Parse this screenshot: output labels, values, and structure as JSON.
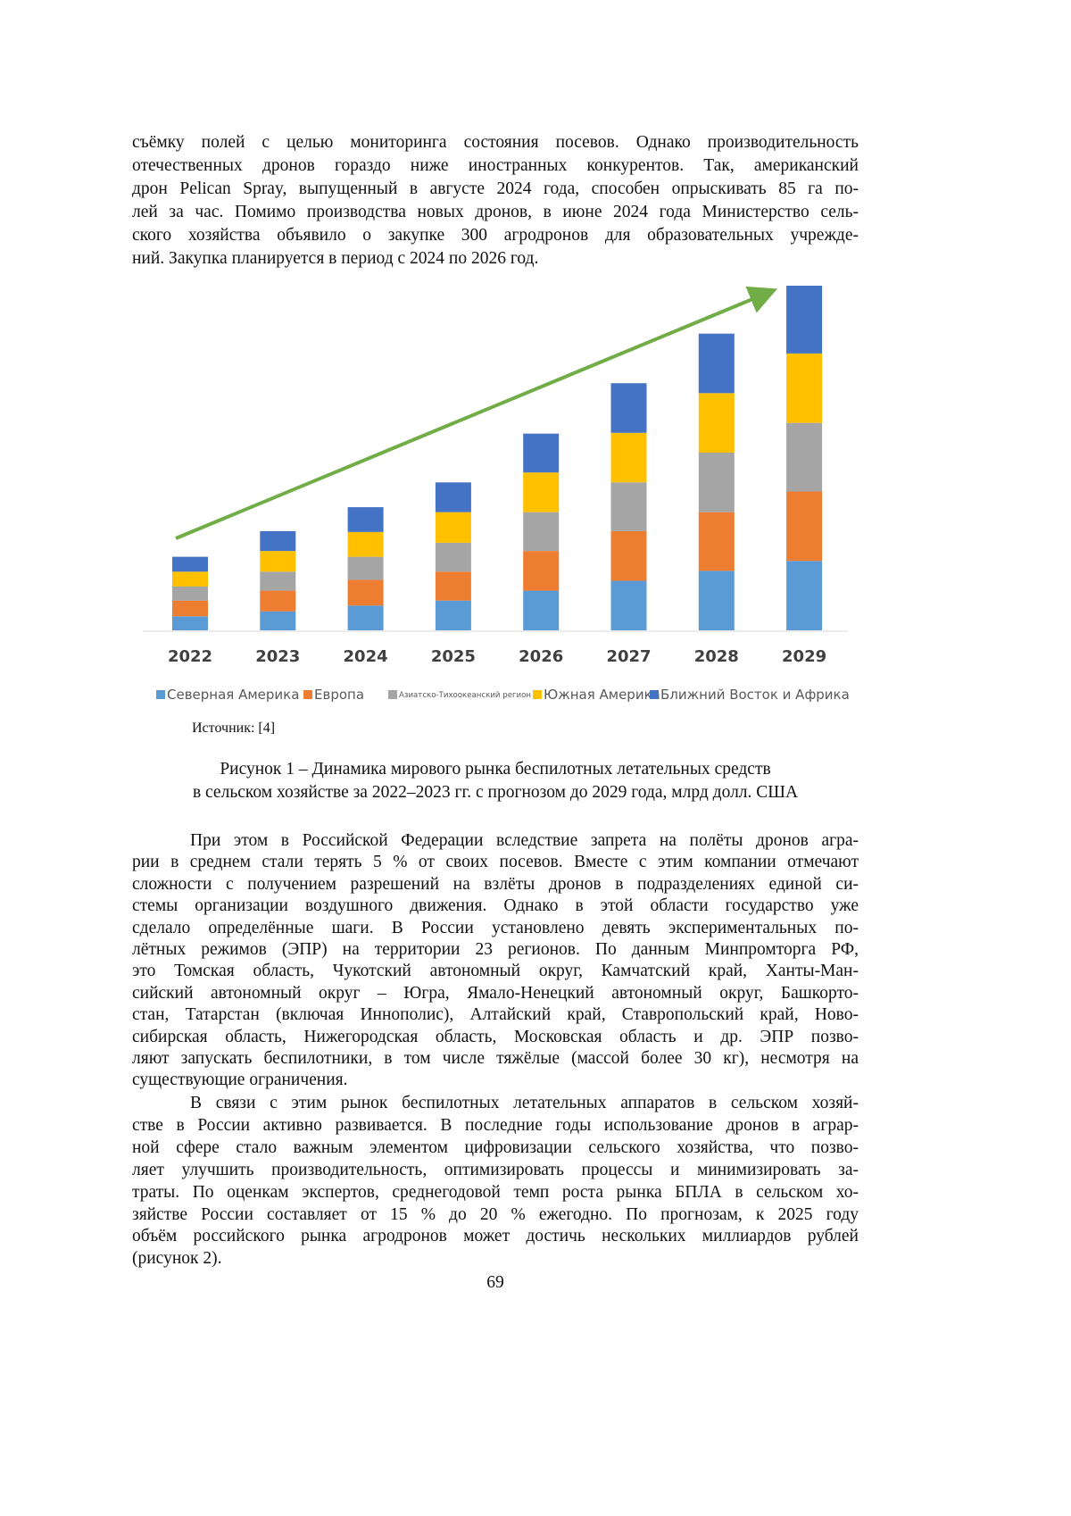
{
  "paragraph_1": {
    "lines": [
      "съёмку полей с целью мониторинга состояния посевов. Однако производительность",
      "отечественных дронов гораздо ниже иностранных конкурентов. Так, американский",
      "дрон Pelican Spray, выпущенный в августе 2024 года, способен опрыскивать 85 га по-",
      "лей за час. Помимо производства новых дронов, в июне 2024 года Министерство сель-",
      "ского хозяйства объявило о закупке 300 агродронов для образовательных учрежде-",
      "ний. Закупка планируется в период с 2024 по 2026 год."
    ]
  },
  "chart_data": {
    "type": "stacked_bar",
    "categories": [
      "2022",
      "2023",
      "2024",
      "2025",
      "2026",
      "2027",
      "2028",
      "2029"
    ],
    "series": [
      {
        "name": "Северная Америка",
        "color": "#5b9bd5",
        "values": [
          17,
          23,
          30,
          36,
          48,
          60,
          72,
          84
        ]
      },
      {
        "name": "Европа",
        "color": "#ed7d31",
        "values": [
          19,
          25,
          31,
          35,
          48,
          60,
          71,
          84
        ]
      },
      {
        "name": "Азиатско-Тихоокеанский регион",
        "color": "#a5a5a5",
        "values": [
          17,
          23,
          28,
          35,
          47,
          59,
          72,
          83
        ]
      },
      {
        "name": "Южная Америка",
        "color": "#ffc000",
        "values": [
          18,
          25,
          30,
          37,
          48,
          60,
          72,
          84
        ]
      },
      {
        "name": "Ближний Восток и Африка",
        "color": "#4472c4",
        "values": [
          18,
          24,
          30,
          36,
          47,
          60,
          72,
          82
        ]
      }
    ],
    "legend": "bottom"
  },
  "source": "Источник: [4]",
  "caption": {
    "lines": [
      "Рисунок 1 – Динамика мирового рынка беспилотных летательных средств",
      "в сельском хозяйстве за 2022–2023 гг. с прогнозом до 2029 года, млрд долл. США"
    ]
  },
  "paragraph_2": {
    "lines": [
      "При этом в Российской Федерации вследствие запрета на полёты дронов агра-",
      "рии в среднем стали терять 5 % от своих посевов. Вместе с этим компании отмечают",
      "сложности с получением разрешений на взлёты дронов в подразделениях единой си-",
      "стемы организации воздушного движения. Однако в этой области государство уже",
      "сделало определённые шаги. В России установлено девять экспериментальных по-",
      "лётных режимов (ЭПР) на территории 23 регионов. По данным Минпромторга РФ,",
      "это Томская область, Чукотский автономный округ, Камчатский край, Ханты-Ман-",
      "сийский автономный округ – Югра, Ямало-Ненецкий автономный округ, Башкорто-",
      "стан, Татарстан (включая Иннополис), Алтайский край, Ставропольский край, Ново-",
      "сибирская область, Нижегородская область, Московская область и др. ЭПР позво-",
      "ляют запускать беспилотники, в том числе тяжёлые (массой более 30 кг), несмотря на",
      "существующие ограничения."
    ]
  },
  "paragraph_3": {
    "lines": [
      "В связи с этим рынок беспилотных летательных аппаратов в сельском хозяй-",
      "стве в России активно развивается. В последние годы использование дронов в аграр-",
      "ной сфере стало важным элементом цифровизации сельского хозяйства, что позво-",
      "ляет улучшить производительность, оптимизировать процессы и минимизировать за-",
      "траты. По оценкам экспертов, среднегодовой темп роста рынка БПЛА в сельском хо-",
      "зяйстве России составляет от 15 % до 20 % ежегодно. По прогнозам, к 2025 году",
      "объём российского рынка агродронов может достичь нескольких миллиардов рублей",
      "(рисунок 2)."
    ]
  },
  "page_number": "69"
}
